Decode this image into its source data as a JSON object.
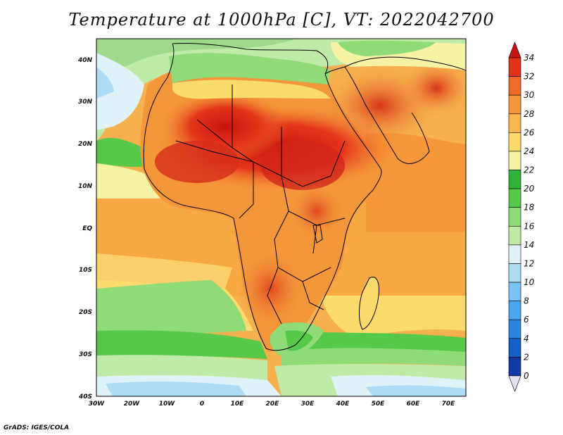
{
  "title": "Temperature at 1000hPa [C], VT: 2022042700",
  "credit": "GrADS: IGES/COLA",
  "map": {
    "lat_labels": [
      "40N",
      "30N",
      "20N",
      "10N",
      "EQ",
      "10S",
      "20S",
      "30S",
      "40S"
    ],
    "lon_labels": [
      "30W",
      "20W",
      "10W",
      "0",
      "10E",
      "20E",
      "30E",
      "40E",
      "50E",
      "60E",
      "70E"
    ],
    "lon_range": [
      -30,
      75
    ],
    "lat_range": [
      -40,
      45
    ]
  },
  "colorbar": {
    "ticks": [
      "34",
      "32",
      "30",
      "28",
      "26",
      "24",
      "22",
      "20",
      "18",
      "16",
      "14",
      "12",
      "10",
      "8",
      "6",
      "4",
      "2",
      "0"
    ],
    "colors": [
      "#0b1a6b",
      "#0f3aa3",
      "#1560c8",
      "#2c85df",
      "#4aa6ee",
      "#7cc3f5",
      "#aedcf7",
      "#dff2f7",
      "#bfeaa8",
      "#8fdb78",
      "#56c94a",
      "#2fb33b",
      "#f6f2a4",
      "#fbdb6c",
      "#f9b84f",
      "#f6983a",
      "#ef6a26",
      "#e0331a",
      "#c41510"
    ],
    "unit": "C"
  }
}
